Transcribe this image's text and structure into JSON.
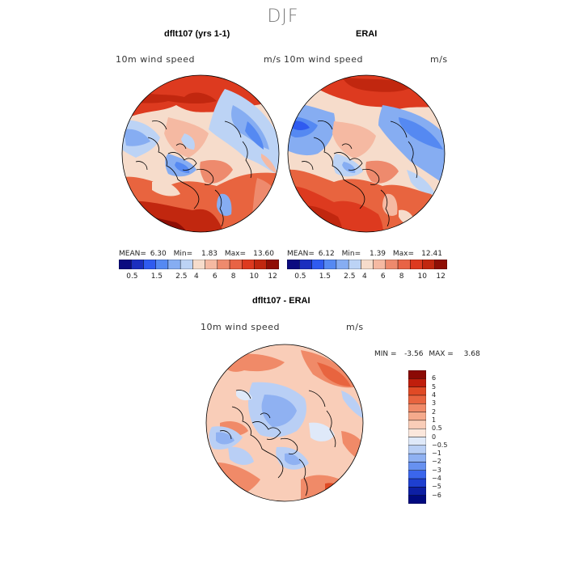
{
  "figure": {
    "title": "DJF"
  },
  "panels": {
    "left": {
      "title": "dflt107 (yrs 1-1)",
      "variable": "10m wind speed",
      "units": "m/s",
      "stats": {
        "mean_label": "MEAN=",
        "mean": "6.30",
        "min_label": "Min=",
        "min": "1.83",
        "max_label": "Max=",
        "max": "13.60"
      }
    },
    "right": {
      "title": "ERAI",
      "variable": "10m wind speed",
      "units": "m/s",
      "stats": {
        "mean_label": "MEAN=",
        "mean": "6.12",
        "min_label": "Min=",
        "min": "1.39",
        "max_label": "Max=",
        "max": "12.41"
      }
    },
    "diff": {
      "title": "dflt107 - ERAI",
      "variable": "10m wind speed",
      "units": "m/s",
      "stats": {
        "min_label": "MIN =",
        "min": "-3.56",
        "max_label": "MAX =",
        "max": "3.68"
      }
    }
  },
  "colorbar_top": {
    "ticks": [
      "0.5",
      "1.5",
      "2.5",
      "4",
      "6",
      "8",
      "10",
      "12"
    ],
    "colors": [
      "#0b0b80",
      "#1b2fbf",
      "#2f5bf0",
      "#5589f2",
      "#86adf2",
      "#bcd3f5",
      "#f6dccb",
      "#f5b9a2",
      "#ee8a6d",
      "#e86345",
      "#dd3a1f",
      "#c1270f",
      "#8f0e05"
    ]
  },
  "colorbar_diff": {
    "labels": [
      "6",
      "5",
      "4",
      "3",
      "2",
      "1",
      "0.5",
      "0",
      "−0.5",
      "−1",
      "−2",
      "−3",
      "−4",
      "−5",
      "−6"
    ],
    "colors": [
      "#8b0a04",
      "#c01e0c",
      "#e04a25",
      "#e8643f",
      "#f08a68",
      "#f5aa8c",
      "#f9cdb8",
      "#fbe7dc",
      "#dfe9f9",
      "#b9cff5",
      "#8fb1f2",
      "#6791f0",
      "#3b66ec",
      "#1e3fd0",
      "#0d1fa4",
      "#000a80"
    ]
  },
  "colors": {
    "title_gray": "#777777",
    "map_red": "#e8643f",
    "map_blue": "#86adf2",
    "coast": "#000000"
  }
}
